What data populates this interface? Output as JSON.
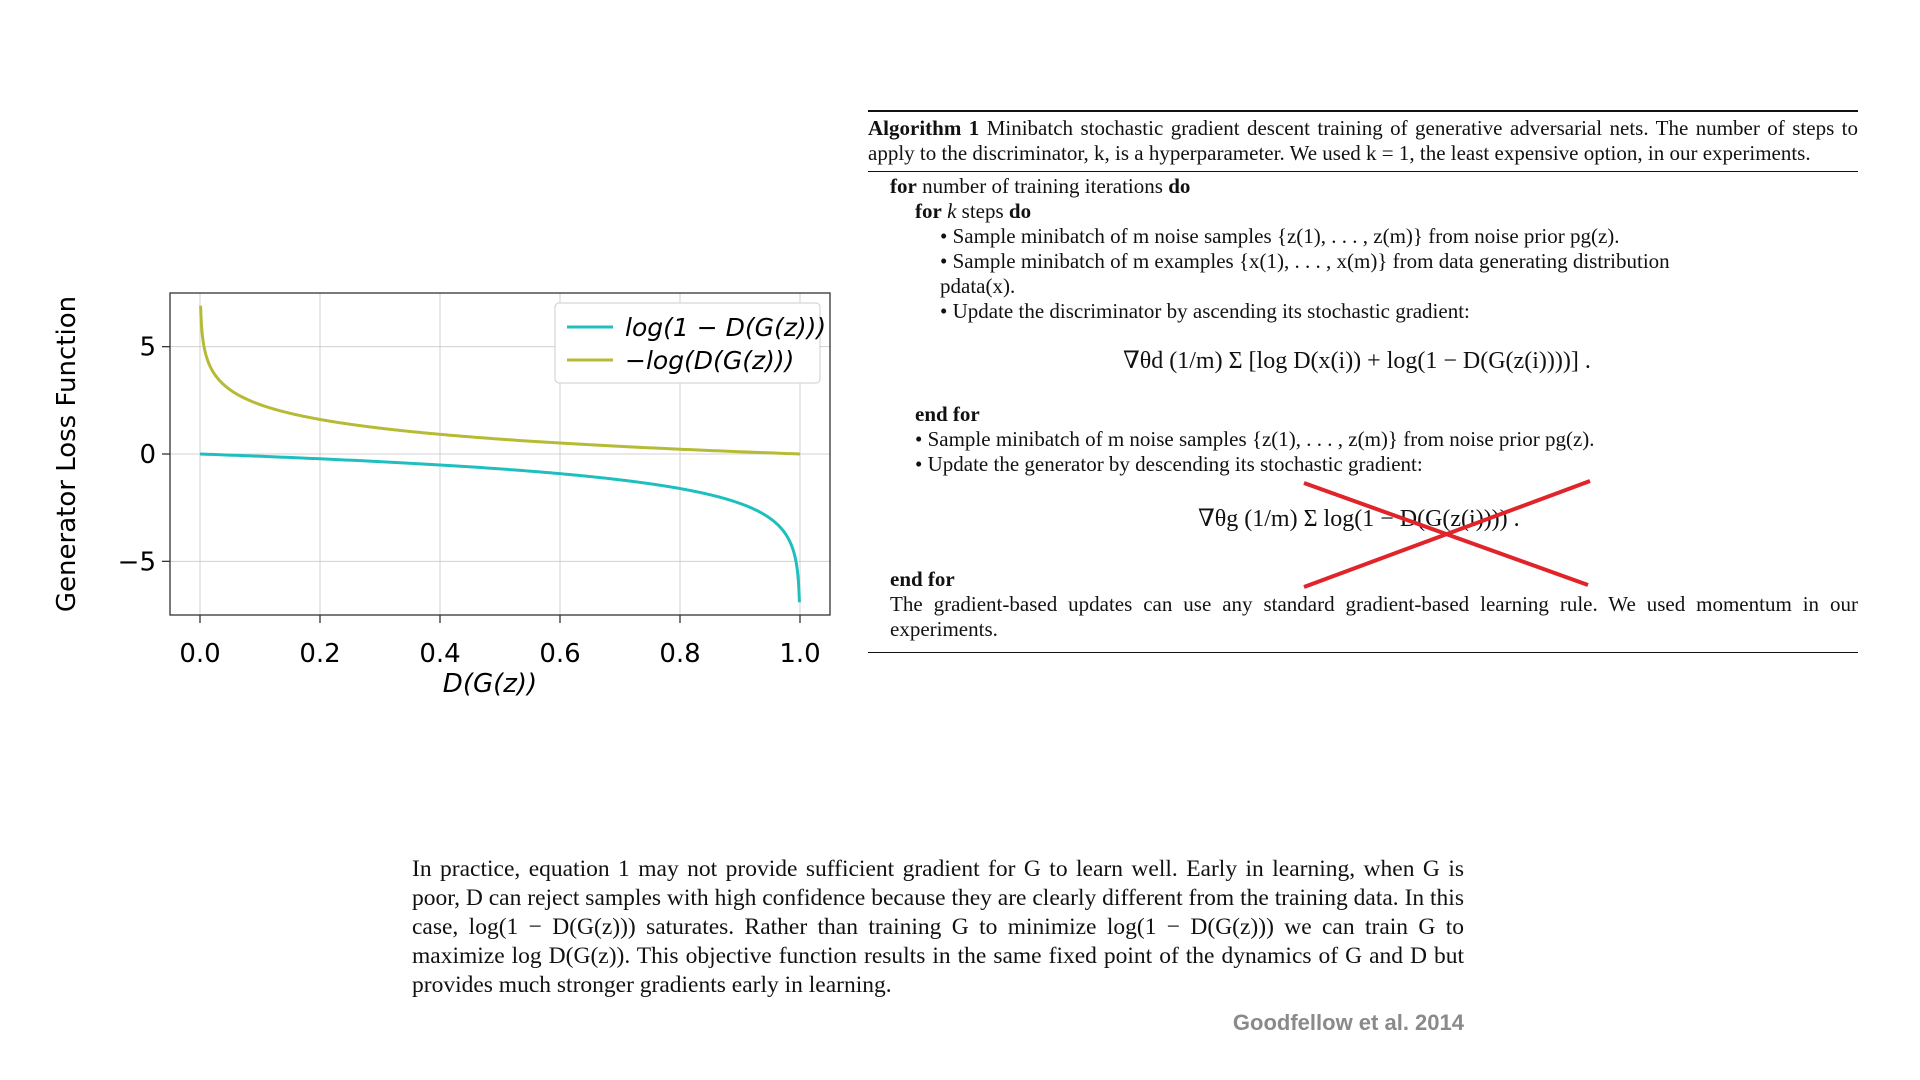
{
  "chart_data": {
    "type": "line",
    "xlabel": "D(G(z))",
    "ylabel": "Generator Loss Function",
    "xlim": [
      -0.05,
      1.05
    ],
    "ylim": [
      -7.5,
      7.5
    ],
    "xticks": [
      "0.0",
      "0.2",
      "0.4",
      "0.6",
      "0.8",
      "1.0"
    ],
    "yticks": [
      "5",
      "0",
      "−5"
    ],
    "grid": true,
    "legend": "top-right",
    "series": [
      {
        "name": "log(1 − D(G(z)))",
        "color": "#1fbfbf",
        "function": "log(1-x)",
        "x": [
          0.0,
          0.2,
          0.4,
          0.6,
          0.8,
          0.9,
          0.95,
          0.99,
          0.999
        ],
        "values": [
          0.0,
          -0.22,
          -0.51,
          -0.92,
          -1.61,
          -2.3,
          -3.0,
          -4.6,
          -6.9
        ]
      },
      {
        "name": "−log(D(G(z)))",
        "color": "#b5bb34",
        "function": "-log(x)",
        "x": [
          0.001,
          0.01,
          0.05,
          0.2,
          0.4,
          0.6,
          0.8,
          1.0
        ],
        "values": [
          6.9,
          4.6,
          3.0,
          1.61,
          0.92,
          0.51,
          0.22,
          0.0
        ]
      }
    ]
  },
  "algorithm": {
    "caption_title": "Algorithm 1",
    "caption_text": "Minibatch stochastic gradient descent training of generative adversarial nets. The number of steps to apply to the discriminator, k, is a hyperparameter. We used k = 1, the least expensive option, in our experiments.",
    "lines": {
      "for_outer_kw": "for",
      "for_outer_text": "number of training iterations",
      "do_kw": "do",
      "for_inner_kw": "for",
      "for_inner_var": "k",
      "for_inner_text": "steps",
      "sample_noise_d": "• Sample minibatch of m noise samples {z(1), . . . , z(m)} from noise prior pg(z).",
      "sample_data": "• Sample minibatch of m examples {x(1), . . . , x(m)} from data generating distribution",
      "sample_data_cont": "pdata(x).",
      "update_d": "• Update the discriminator by ascending its stochastic gradient:",
      "eq_d": "∇θd (1/m) Σ [log D(x(i)) + log(1 − D(G(z(i))))] .",
      "end_for_inner": "end for",
      "sample_noise_g": "• Sample minibatch of m noise samples {z(1), . . . , z(m)} from noise prior pg(z).",
      "update_g": "• Update the generator by descending its stochastic gradient:",
      "eq_g": "∇θg (1/m) Σ log(1 − D(G(z(i)))) .",
      "end_for_outer": "end for",
      "footer": "The gradient-based updates can use any standard gradient-based learning rule. We used momentum in our experiments."
    }
  },
  "paragraph": "In practice, equation 1 may not provide sufficient gradient for G to learn well. Early in learning, when G is poor, D can reject samples with high confidence because they are clearly different from the training data. In this case, log(1 − D(G(z))) saturates. Rather than training G to minimize log(1 − D(G(z))) we can train G to maximize log D(G(z)). This objective function results in the same fixed point of the dynamics of G and D but provides much stronger gradients early in learning.",
  "citation": "Goodfellow et al. 2014",
  "annotation_color": "#e0242a"
}
